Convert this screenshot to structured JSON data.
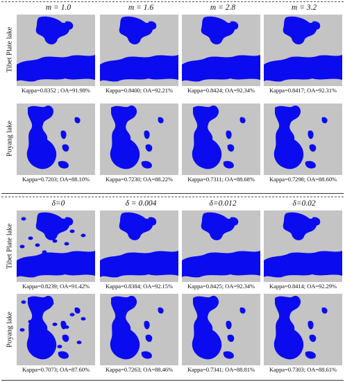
{
  "top_headers": [
    "m = 1.0",
    "m = 1.6",
    "m = 2.8",
    "m = 3.2"
  ],
  "bottom_headers": [
    "δ=0",
    "δ = 0.004",
    "δ=0.012",
    "δ=0.02"
  ],
  "row_labels": [
    "Tibet Plate lake",
    "Poyang lake",
    "Tibet Plate lake",
    "Poyang lake"
  ],
  "captions": [
    [
      "Kappa=0.8352 ; OA=91.98%",
      "Kappa=0.8400; OA=92.21%",
      "Kappa=0.8424; OA=92.34%",
      "Kappa=0.8417; OA=92.31%"
    ],
    [
      "Kappa=0.7203; OA=88.10%",
      "Kappa=0.7230; OA=88.22%",
      "Kappa=0.7311; OA=88.68%",
      "Kappa=0.7298; OA=88.60%"
    ],
    [
      "Kappa=0.8239; OA=91.42%",
      "Kappa=0.8384; OA=92.15%",
      "Kappa=0.8425; OA=92.34%",
      "Kappa=0.8414; OA=92.29%"
    ],
    [
      "Kappa=0.7073; OA=87.60%",
      "Kappa=0.7263; OA=88.46%",
      "Kappa=0.7341; OA=88.81%",
      "Kappa=0.7303; OA=88.61%"
    ]
  ],
  "colors": {
    "background": "#c4c4c4",
    "water": "#0b0bf0"
  }
}
